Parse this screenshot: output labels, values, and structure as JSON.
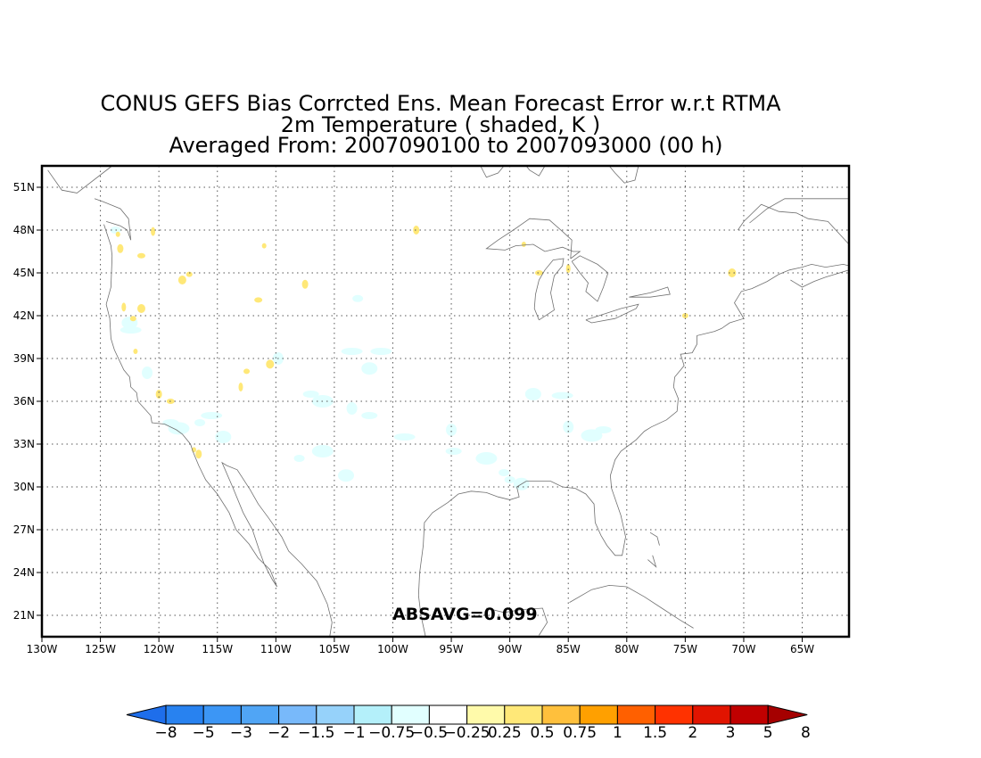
{
  "title_lines": [
    "CONUS GEFS Bias Corrcted Ens. Mean Forecast Error w.r.t RTMA",
    "2m Temperature ( shaded, K )",
    "Averaged From: 2007090100 to 2007093000 (00 h)"
  ],
  "stat_label": "ABSAVG=0.099",
  "map": {
    "lon_range": [
      -130,
      -61
    ],
    "lat_range": [
      19.5,
      52.5
    ],
    "lon_ticks": [
      {
        "value": -130,
        "label": "130W"
      },
      {
        "value": -125,
        "label": "125W"
      },
      {
        "value": -120,
        "label": "120W"
      },
      {
        "value": -115,
        "label": "115W"
      },
      {
        "value": -110,
        "label": "110W"
      },
      {
        "value": -105,
        "label": "105W"
      },
      {
        "value": -100,
        "label": "100W"
      },
      {
        "value": -95,
        "label": "95W"
      },
      {
        "value": -90,
        "label": "90W"
      },
      {
        "value": -85,
        "label": "85W"
      },
      {
        "value": -80,
        "label": "80W"
      },
      {
        "value": -75,
        "label": "75W"
      },
      {
        "value": -70,
        "label": "70W"
      },
      {
        "value": -65,
        "label": "65W"
      }
    ],
    "lat_ticks": [
      {
        "value": 21,
        "label": "21N"
      },
      {
        "value": 24,
        "label": "24N"
      },
      {
        "value": 27,
        "label": "27N"
      },
      {
        "value": 30,
        "label": "30N"
      },
      {
        "value": 33,
        "label": "33N"
      },
      {
        "value": 36,
        "label": "36N"
      },
      {
        "value": 39,
        "label": "39N"
      },
      {
        "value": 42,
        "label": "42N"
      },
      {
        "value": 45,
        "label": "45N"
      },
      {
        "value": 48,
        "label": "48N"
      },
      {
        "value": 51,
        "label": "51N"
      }
    ],
    "grid": true,
    "coastlines": [
      [
        [
          -124.7,
          48.4
        ],
        [
          -124.1,
          46.9
        ],
        [
          -124.0,
          46.2
        ],
        [
          -124.1,
          44.0
        ],
        [
          -124.5,
          42.8
        ],
        [
          -124.2,
          41.8
        ],
        [
          -124.1,
          40.4
        ],
        [
          -123.8,
          39.6
        ],
        [
          -123.0,
          38.2
        ],
        [
          -122.5,
          37.7
        ],
        [
          -122.4,
          37.0
        ],
        [
          -121.9,
          36.6
        ],
        [
          -121.8,
          36.0
        ],
        [
          -120.7,
          35.0
        ],
        [
          -120.6,
          34.5
        ],
        [
          -119.5,
          34.4
        ],
        [
          -118.5,
          34.0
        ],
        [
          -118.0,
          33.7
        ],
        [
          -117.3,
          33.0
        ],
        [
          -117.1,
          32.5
        ],
        [
          -116.6,
          31.5
        ],
        [
          -116.0,
          30.5
        ],
        [
          -115.0,
          29.5
        ],
        [
          -114.0,
          28.2
        ],
        [
          -113.4,
          27.0
        ],
        [
          -112.3,
          26.0
        ],
        [
          -111.5,
          25.0
        ],
        [
          -110.5,
          24.2
        ],
        [
          -109.9,
          23.0
        ],
        [
          -110.3,
          23.5
        ],
        [
          -111.0,
          24.6
        ],
        [
          -111.4,
          25.5
        ],
        [
          -112.0,
          27.0
        ],
        [
          -112.8,
          28.2
        ],
        [
          -113.7,
          30.0
        ],
        [
          -114.6,
          31.7
        ],
        [
          -114.2,
          31.5
        ],
        [
          -113.3,
          31.2
        ],
        [
          -112.2,
          29.8
        ],
        [
          -111.5,
          28.8
        ],
        [
          -110.6,
          27.8
        ],
        [
          -109.5,
          26.5
        ],
        [
          -108.9,
          25.5
        ],
        [
          -107.8,
          24.6
        ],
        [
          -106.5,
          23.4
        ],
        [
          -105.6,
          21.8
        ],
        [
          -105.2,
          20.5
        ],
        [
          -105.4,
          19.5
        ]
      ],
      [
        [
          -97.2,
          19.5
        ],
        [
          -97.6,
          21.0
        ],
        [
          -97.8,
          22.4
        ],
        [
          -97.7,
          24.0
        ],
        [
          -97.4,
          25.9
        ],
        [
          -97.3,
          27.5
        ],
        [
          -96.6,
          28.2
        ],
        [
          -95.3,
          28.9
        ],
        [
          -94.4,
          29.5
        ],
        [
          -93.3,
          29.7
        ],
        [
          -92.0,
          29.6
        ],
        [
          -91.0,
          29.3
        ],
        [
          -90.0,
          29.1
        ],
        [
          -89.2,
          29.3
        ],
        [
          -89.4,
          30.0
        ],
        [
          -88.6,
          30.4
        ],
        [
          -87.5,
          30.4
        ],
        [
          -86.5,
          30.4
        ],
        [
          -85.5,
          30.0
        ],
        [
          -84.4,
          29.9
        ],
        [
          -83.5,
          29.5
        ],
        [
          -82.8,
          28.8
        ],
        [
          -82.7,
          27.5
        ],
        [
          -82.2,
          26.6
        ],
        [
          -81.7,
          25.9
        ],
        [
          -81.0,
          25.2
        ],
        [
          -80.4,
          25.2
        ],
        [
          -80.1,
          26.5
        ],
        [
          -80.5,
          28.0
        ],
        [
          -81.3,
          29.9
        ],
        [
          -81.4,
          30.8
        ],
        [
          -81.0,
          31.9
        ],
        [
          -80.5,
          32.5
        ],
        [
          -79.2,
          33.3
        ],
        [
          -78.5,
          33.9
        ],
        [
          -77.9,
          34.2
        ],
        [
          -76.6,
          34.7
        ],
        [
          -75.7,
          35.3
        ],
        [
          -75.6,
          36.2
        ],
        [
          -76.0,
          37.0
        ],
        [
          -75.9,
          37.7
        ],
        [
          -75.1,
          38.5
        ],
        [
          -75.4,
          39.3
        ],
        [
          -74.4,
          39.4
        ],
        [
          -74.0,
          40.0
        ],
        [
          -74.0,
          40.6
        ],
        [
          -72.5,
          40.9
        ],
        [
          -71.9,
          41.1
        ],
        [
          -71.2,
          41.5
        ],
        [
          -70.0,
          41.8
        ],
        [
          -70.5,
          42.5
        ],
        [
          -70.8,
          42.9
        ],
        [
          -70.2,
          43.7
        ],
        [
          -69.3,
          43.9
        ],
        [
          -68.0,
          44.4
        ],
        [
          -67.0,
          44.9
        ],
        [
          -66.1,
          45.2
        ],
        [
          -65.0,
          45.4
        ],
        [
          -64.2,
          45.6
        ],
        [
          -63.0,
          45.4
        ],
        [
          -61.5,
          45.6
        ],
        [
          -61.0,
          45.5
        ]
      ],
      [
        [
          -66.0,
          44.5
        ],
        [
          -65.0,
          44.0
        ],
        [
          -64.0,
          44.4
        ],
        [
          -63.0,
          44.7
        ],
        [
          -61.8,
          45.0
        ],
        [
          -61.0,
          45.2
        ]
      ],
      [
        [
          -61.0,
          47.0
        ],
        [
          -62.8,
          48.6
        ],
        [
          -64.5,
          48.8
        ],
        [
          -65.5,
          49.2
        ],
        [
          -67.0,
          49.3
        ],
        [
          -68.5,
          49.8
        ],
        [
          -70.0,
          48.6
        ],
        [
          -70.5,
          48.0
        ]
      ],
      [
        [
          -61.0,
          50.2
        ],
        [
          -63.0,
          50.2
        ],
        [
          -65.0,
          50.2
        ],
        [
          -66.5,
          50.2
        ],
        [
          -68.0,
          49.5
        ],
        [
          -69.5,
          48.5
        ]
      ],
      [
        [
          -79.0,
          52.5
        ],
        [
          -79.3,
          51.5
        ],
        [
          -80.2,
          51.3
        ],
        [
          -81.0,
          52.0
        ],
        [
          -81.5,
          52.5
        ]
      ],
      [
        [
          -90.5,
          52.5
        ],
        [
          -91.0,
          52.0
        ],
        [
          -92.0,
          51.7
        ],
        [
          -92.5,
          52.5
        ]
      ],
      [
        [
          -87.0,
          52.5
        ],
        [
          -87.5,
          51.8
        ],
        [
          -88.3,
          52.2
        ],
        [
          -88.6,
          52.5
        ]
      ],
      [
        [
          -84.8,
          46.0
        ],
        [
          -84.0,
          46.5
        ],
        [
          -84.6,
          46.5
        ],
        [
          -85.5,
          46.8
        ],
        [
          -87.0,
          46.5
        ],
        [
          -88.0,
          47.0
        ],
        [
          -89.5,
          46.9
        ],
        [
          -90.4,
          46.6
        ],
        [
          -92.0,
          46.7
        ],
        [
          -91.0,
          47.3
        ],
        [
          -89.7,
          48.0
        ],
        [
          -88.3,
          48.8
        ],
        [
          -86.6,
          48.7
        ],
        [
          -85.5,
          47.9
        ],
        [
          -84.7,
          47.3
        ],
        [
          -84.8,
          46.0
        ]
      ],
      [
        [
          -87.5,
          41.7
        ],
        [
          -87.9,
          42.5
        ],
        [
          -87.8,
          43.5
        ],
        [
          -87.5,
          44.5
        ],
        [
          -87.0,
          45.2
        ],
        [
          -86.3,
          45.9
        ],
        [
          -85.4,
          46.0
        ],
        [
          -85.5,
          45.5
        ],
        [
          -86.2,
          44.8
        ],
        [
          -86.5,
          43.6
        ],
        [
          -86.2,
          42.4
        ],
        [
          -87.5,
          41.7
        ]
      ],
      [
        [
          -84.7,
          45.8
        ],
        [
          -84.0,
          45.0
        ],
        [
          -83.3,
          44.3
        ],
        [
          -83.5,
          43.7
        ],
        [
          -82.5,
          43.0
        ],
        [
          -82.0,
          44.0
        ],
        [
          -81.6,
          45.0
        ],
        [
          -82.5,
          45.6
        ],
        [
          -84.0,
          46.2
        ],
        [
          -84.7,
          45.8
        ]
      ],
      [
        [
          -83.5,
          41.7
        ],
        [
          -82.0,
          42.1
        ],
        [
          -80.5,
          42.5
        ],
        [
          -79.0,
          42.8
        ],
        [
          -79.2,
          42.5
        ],
        [
          -81.0,
          41.8
        ],
        [
          -83.0,
          41.5
        ],
        [
          -83.5,
          41.7
        ]
      ],
      [
        [
          -79.8,
          43.3
        ],
        [
          -78.0,
          43.6
        ],
        [
          -76.5,
          44.0
        ],
        [
          -76.3,
          43.5
        ],
        [
          -78.0,
          43.3
        ],
        [
          -79.8,
          43.3
        ]
      ],
      [
        [
          -124.0,
          52.5
        ],
        [
          -127.0,
          50.6
        ],
        [
          -128.3,
          50.8
        ],
        [
          -129.5,
          52.2
        ]
      ],
      [
        [
          -124.5,
          48.6
        ],
        [
          -123.3,
          48.3
        ],
        [
          -122.7,
          48.0
        ],
        [
          -122.4,
          47.3
        ],
        [
          -122.6,
          48.8
        ],
        [
          -123.3,
          49.5
        ],
        [
          -124.8,
          50.0
        ],
        [
          -125.5,
          50.2
        ]
      ],
      [
        [
          -92.0,
          21.5
        ],
        [
          -90.5,
          21.2
        ],
        [
          -89.0,
          21.4
        ],
        [
          -87.2,
          21.5
        ],
        [
          -86.8,
          20.5
        ],
        [
          -87.5,
          19.6
        ]
      ],
      [
        [
          -84.9,
          21.9
        ],
        [
          -83.0,
          22.8
        ],
        [
          -81.5,
          23.1
        ],
        [
          -80.0,
          23.0
        ],
        [
          -78.5,
          22.3
        ],
        [
          -77.0,
          21.5
        ],
        [
          -75.5,
          20.7
        ],
        [
          -74.3,
          20.1
        ]
      ],
      [
        [
          -78.0,
          26.8
        ],
        [
          -77.4,
          26.5
        ],
        [
          -77.2,
          25.9
        ]
      ],
      [
        [
          -77.8,
          25.2
        ],
        [
          -77.5,
          24.4
        ],
        [
          -78.2,
          24.9
        ]
      ]
    ],
    "shading": {
      "negative": [
        {
          "lon": -123.7,
          "lat": 48.0
        },
        {
          "lon": -122.5,
          "lat": 41.5
        },
        {
          "lon": -122.4,
          "lat": 41.0
        },
        {
          "lon": -121.0,
          "lat": 38.0
        },
        {
          "lon": -119.0,
          "lat": 34.5
        },
        {
          "lon": -118.3,
          "lat": 34.1
        },
        {
          "lon": -116.5,
          "lat": 34.5
        },
        {
          "lon": -114.5,
          "lat": 33.5
        },
        {
          "lon": -115.5,
          "lat": 35.0
        },
        {
          "lon": -109.8,
          "lat": 39.0
        },
        {
          "lon": -107.0,
          "lat": 36.5
        },
        {
          "lon": -106.0,
          "lat": 36.0
        },
        {
          "lon": -103.0,
          "lat": 43.2
        },
        {
          "lon": -102.0,
          "lat": 38.3
        },
        {
          "lon": -103.5,
          "lat": 39.5
        },
        {
          "lon": -103.5,
          "lat": 35.5
        },
        {
          "lon": -102.0,
          "lat": 35.0
        },
        {
          "lon": -106.0,
          "lat": 32.5
        },
        {
          "lon": -108.0,
          "lat": 32.0
        },
        {
          "lon": -104.0,
          "lat": 30.8
        },
        {
          "lon": -99.0,
          "lat": 33.5
        },
        {
          "lon": -95.0,
          "lat": 34.0
        },
        {
          "lon": -94.8,
          "lat": 32.5
        },
        {
          "lon": -92.0,
          "lat": 32.0
        },
        {
          "lon": -90.5,
          "lat": 31.0
        },
        {
          "lon": -88.0,
          "lat": 36.5
        },
        {
          "lon": -85.5,
          "lat": 36.4
        },
        {
          "lon": -85.0,
          "lat": 34.2
        },
        {
          "lon": -82.0,
          "lat": 34.0
        },
        {
          "lon": -83.0,
          "lat": 33.6
        },
        {
          "lon": -90.0,
          "lat": 30.5
        },
        {
          "lon": -89.0,
          "lat": 30.2
        },
        {
          "lon": -101.0,
          "lat": 39.5
        }
      ],
      "positive": [
        {
          "lon": -123.5,
          "lat": 47.7
        },
        {
          "lon": -123.3,
          "lat": 46.7
        },
        {
          "lon": -121.5,
          "lat": 46.2
        },
        {
          "lon": -120.5,
          "lat": 47.9
        },
        {
          "lon": -117.4,
          "lat": 44.9
        },
        {
          "lon": -118.0,
          "lat": 44.5
        },
        {
          "lon": -111.0,
          "lat": 46.9
        },
        {
          "lon": -107.5,
          "lat": 44.2
        },
        {
          "lon": -111.5,
          "lat": 43.1
        },
        {
          "lon": -123.0,
          "lat": 42.6
        },
        {
          "lon": -122.2,
          "lat": 41.8
        },
        {
          "lon": -121.5,
          "lat": 42.5
        },
        {
          "lon": -122.0,
          "lat": 39.5
        },
        {
          "lon": -120.0,
          "lat": 36.5
        },
        {
          "lon": -119.0,
          "lat": 36.0
        },
        {
          "lon": -113.0,
          "lat": 37.0
        },
        {
          "lon": -112.5,
          "lat": 38.1
        },
        {
          "lon": -110.5,
          "lat": 38.6
        },
        {
          "lon": -117.0,
          "lat": 32.6
        },
        {
          "lon": -116.6,
          "lat": 32.3
        },
        {
          "lon": -87.5,
          "lat": 45.0
        },
        {
          "lon": -85.0,
          "lat": 45.3
        },
        {
          "lon": -75.0,
          "lat": 42.0
        },
        {
          "lon": -71.0,
          "lat": 45.0
        },
        {
          "lon": -88.8,
          "lat": 47.0
        },
        {
          "lon": -98.0,
          "lat": 48.0
        }
      ]
    }
  },
  "colorbar": {
    "colors": [
      "#1e6eeb",
      "#2882f0",
      "#3c96f5",
      "#50a5f5",
      "#78b9fa",
      "#96d2fa",
      "#b4f0fa",
      "#e1ffff",
      "#ffffff",
      "#fffaaa",
      "#ffe878",
      "#ffc03c",
      "#ffa000",
      "#ff6000",
      "#ff3200",
      "#e11400",
      "#c00000",
      "#a50000"
    ],
    "labels": [
      "−8",
      "−5",
      "−3",
      "−2",
      "−1.5",
      "−1",
      "−0.75",
      "−0.5",
      "−0.25",
      "0.25",
      "0.5",
      "0.75",
      "1",
      "1.5",
      "2",
      "3",
      "5",
      "8"
    ]
  }
}
